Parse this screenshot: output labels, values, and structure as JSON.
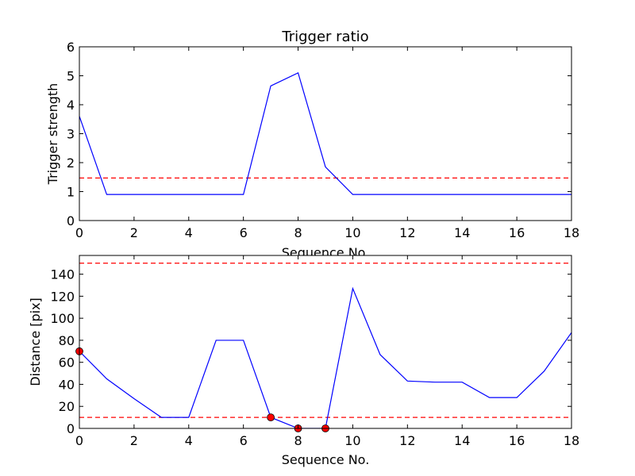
{
  "chart_data": [
    {
      "type": "line",
      "title": "Trigger ratio",
      "xlabel": "Sequence No.",
      "ylabel": "Trigger strength",
      "xlim": [
        0,
        18
      ],
      "ylim": [
        0,
        6
      ],
      "xticks": [
        0,
        2,
        4,
        6,
        8,
        10,
        12,
        14,
        16,
        18
      ],
      "yticks": [
        0,
        1,
        2,
        3,
        4,
        5,
        6
      ],
      "grid": false,
      "series": [
        {
          "color": "#0000ff",
          "style": "solid",
          "x": [
            0,
            1,
            2,
            3,
            4,
            5,
            6,
            7,
            8,
            9,
            10,
            11,
            12,
            13,
            14,
            15,
            16,
            17,
            18
          ],
          "y": [
            3.6,
            0.9,
            0.9,
            0.9,
            0.9,
            0.9,
            0.9,
            4.65,
            5.1,
            1.85,
            0.9,
            0.9,
            0.9,
            0.9,
            0.9,
            0.9,
            0.9,
            0.9,
            0.9
          ]
        }
      ],
      "hlines": [
        {
          "y": 1.47,
          "color": "#ff0000",
          "style": "dashed"
        }
      ],
      "markers": []
    },
    {
      "type": "line",
      "title": "",
      "xlabel": "Sequence No.",
      "ylabel": "Distance [pix]",
      "xlim": [
        0,
        18
      ],
      "ylim": [
        0,
        157
      ],
      "xticks": [
        0,
        2,
        4,
        6,
        8,
        10,
        12,
        14,
        16,
        18
      ],
      "yticks": [
        0,
        20,
        40,
        60,
        80,
        100,
        120,
        140
      ],
      "grid": false,
      "series": [
        {
          "color": "#0000ff",
          "style": "solid",
          "x": [
            0,
            1,
            2,
            3,
            4,
            5,
            6,
            7,
            8,
            9,
            10,
            11,
            12,
            13,
            14,
            15,
            16,
            17,
            18
          ],
          "y": [
            70,
            45,
            27,
            10,
            10,
            80,
            80,
            10,
            0,
            0,
            127,
            67,
            43,
            42,
            42,
            28,
            28,
            52,
            87
          ]
        }
      ],
      "hlines": [
        {
          "y": 150,
          "color": "#ff0000",
          "style": "dashed"
        },
        {
          "y": 10,
          "color": "#ff0000",
          "style": "dashed"
        }
      ],
      "markers": [
        {
          "x": 0,
          "y": 70,
          "color": "#ff0000"
        },
        {
          "x": 7,
          "y": 10,
          "color": "#ff0000"
        },
        {
          "x": 8,
          "y": 0,
          "color": "#ff0000"
        },
        {
          "x": 9,
          "y": 0,
          "color": "#ff0000"
        }
      ]
    }
  ]
}
